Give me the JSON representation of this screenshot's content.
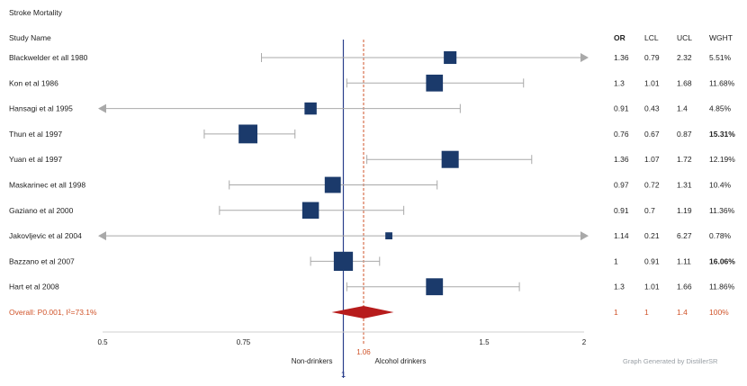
{
  "chart_data": {
    "type": "forest",
    "title": "Stroke Mortality",
    "column_headers": {
      "study": "Study Name",
      "or": "OR",
      "lcl": "LCL",
      "ucl": "UCL",
      "weight": "WGHT"
    },
    "studies": [
      {
        "name": "Blackwelder et all 1980",
        "or": 1.36,
        "lcl": 0.79,
        "ucl": 2.32,
        "weight": 5.51,
        "or_text": "1.36",
        "lcl_text": "0.79",
        "ucl_text": "2.32",
        "weight_text": "5.51%"
      },
      {
        "name": "Kon et al 1986",
        "or": 1.3,
        "lcl": 1.01,
        "ucl": 1.68,
        "weight": 11.68,
        "or_text": "1.3",
        "lcl_text": "1.01",
        "ucl_text": "1.68",
        "weight_text": "11.68%"
      },
      {
        "name": "Hansagi et al 1995",
        "or": 0.91,
        "lcl": 0.43,
        "ucl": 1.4,
        "weight": 4.85,
        "or_text": "0.91",
        "lcl_text": "0.43",
        "ucl_text": "1.4",
        "weight_text": "4.85%"
      },
      {
        "name": "Thun et al 1997",
        "or": 0.76,
        "lcl": 0.67,
        "ucl": 0.87,
        "weight": 15.31,
        "or_text": "0.76",
        "lcl_text": "0.67",
        "ucl_text": "0.87",
        "weight_text": "15.31%"
      },
      {
        "name": "Yuan et al 1997",
        "or": 1.36,
        "lcl": 1.07,
        "ucl": 1.72,
        "weight": 12.19,
        "or_text": "1.36",
        "lcl_text": "1.07",
        "ucl_text": "1.72",
        "weight_text": "12.19%"
      },
      {
        "name": "Maskarinec et all 1998",
        "or": 0.97,
        "lcl": 0.72,
        "ucl": 1.31,
        "weight": 10.4,
        "or_text": "0.97",
        "lcl_text": "0.72",
        "ucl_text": "1.31",
        "weight_text": "10.4%"
      },
      {
        "name": "Gaziano et al 2000",
        "or": 0.91,
        "lcl": 0.7,
        "ucl": 1.19,
        "weight": 11.36,
        "or_text": "0.91",
        "lcl_text": "0.7",
        "ucl_text": "1.19",
        "weight_text": "11.36%"
      },
      {
        "name": "Jakovljevic et al 2004",
        "or": 1.14,
        "lcl": 0.21,
        "ucl": 6.27,
        "weight": 0.78,
        "or_text": "1.14",
        "lcl_text": "0.21",
        "ucl_text": "6.27",
        "weight_text": "0.78%"
      },
      {
        "name": "Bazzano et al 2007",
        "or": 1,
        "lcl": 0.91,
        "ucl": 1.11,
        "weight": 16.06,
        "or_text": "1",
        "lcl_text": "0.91",
        "ucl_text": "1.11",
        "weight_text": "16.06%"
      },
      {
        "name": "Hart et al 2008",
        "or": 1.3,
        "lcl": 1.01,
        "ucl": 1.66,
        "weight": 11.86,
        "or_text": "1.3",
        "lcl_text": "1.01",
        "ucl_text": "1.66",
        "weight_text": "11.86%"
      }
    ],
    "overall": {
      "label": "Overall: P0.001, I²=73.1%",
      "or": 1,
      "lcl": 1,
      "ucl": 1.4,
      "weight": 100,
      "or_text": "1",
      "lcl_text": "1",
      "ucl_text": "1.4",
      "weight_text": "100%",
      "estimate": 1.06,
      "estimate_label": "1.06"
    },
    "x_axis": {
      "scale": "log",
      "range": [
        0.5,
        2
      ],
      "ticks": [
        0.5,
        0.75,
        1.5,
        2
      ],
      "tick_labels": [
        "0.5",
        "0.75",
        "1.5",
        "2"
      ],
      "reference_value": 1,
      "reference_label": "1",
      "left_label": "Non-drinkers",
      "right_label": "Alcohol drinkers"
    },
    "credit": "Graph Generated by DistillerSR",
    "colors": {
      "marker": "#1b3a6b",
      "whisker": "#a9a9a9",
      "reference_line": "#2b3f8c",
      "overall": "#b71c1c",
      "overall_line": "#d0542a",
      "overall_text": "#d0542a"
    }
  }
}
